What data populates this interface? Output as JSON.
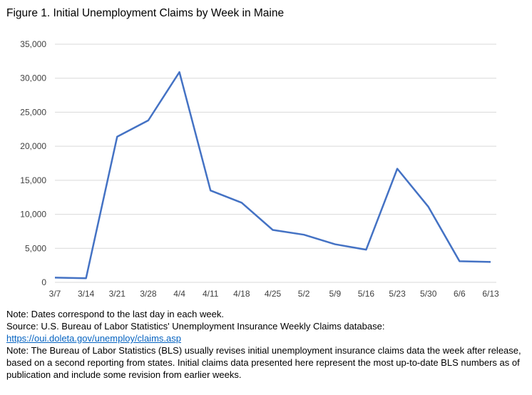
{
  "title": "Figure 1. Initial Unemployment Claims by Week in Maine",
  "chart_data": {
    "type": "line",
    "title": "Figure 1. Initial Unemployment Claims by Week in Maine",
    "xlabel": "",
    "ylabel": "",
    "categories": [
      "3/7",
      "3/14",
      "3/21",
      "3/28",
      "4/4",
      "4/11",
      "4/18",
      "4/25",
      "5/2",
      "5/9",
      "5/16",
      "5/23",
      "5/30",
      "6/6",
      "6/13"
    ],
    "values": [
      700,
      600,
      21400,
      23800,
      30900,
      13500,
      11700,
      7700,
      7000,
      5600,
      4800,
      16700,
      11100,
      3100,
      3000
    ],
    "ylim": [
      0,
      35000
    ],
    "yticks": [
      0,
      5000,
      10000,
      15000,
      20000,
      25000,
      30000,
      35000
    ],
    "ytick_labels": [
      "0",
      "5,000",
      "10,000",
      "15,000",
      "20,000",
      "25,000",
      "30,000",
      "35,000"
    ],
    "grid": true,
    "line_color": "#4472c4",
    "grid_color": "#d9d9d9"
  },
  "notes": {
    "line1": "Note: Dates correspond to the last day in each week.",
    "line2": "Source: U.S. Bureau of Labor Statistics' Unemployment Insurance Weekly Claims database:",
    "link": "https://oui.doleta.gov/unemploy/claims.asp",
    "line3": "Note: The Bureau of Labor Statistics (BLS) usually revises initial unemployment insurance claims data the week after release, based on a second reporting from states. Initial claims data presented here represent the most up-to-date BLS numbers as of publication and include some revision from earlier weeks."
  }
}
